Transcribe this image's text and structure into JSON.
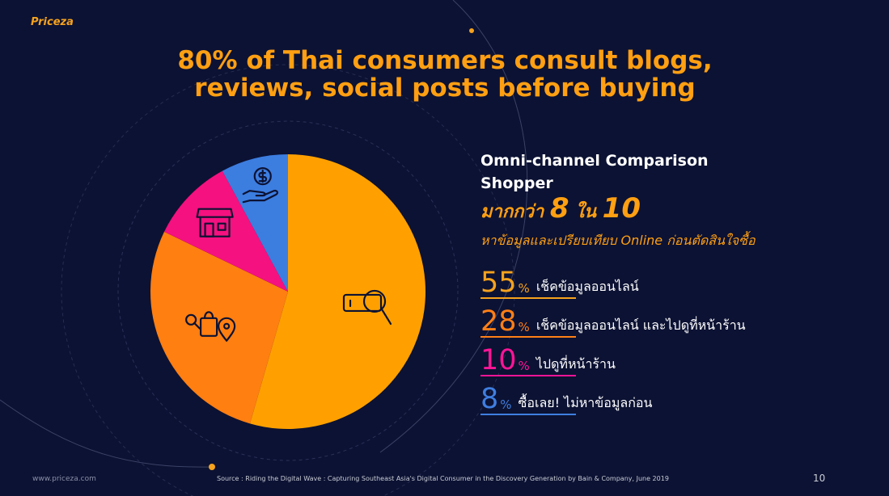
{
  "brand": "Priceza",
  "headline_line1": "80% of Thai consumers consult blogs,",
  "headline_line2": "reviews, social posts before buying",
  "subhead_line1": "Omni-channel Comparison",
  "subhead_line2": "Shopper",
  "big_prefix": "มากกว่า",
  "big_num1": "8",
  "big_mid": "ใน",
  "big_num2": "10",
  "tagline": "หาข้อมูลและเปรียบเทียบ Online ก่อนตัดสินใจซื้อ",
  "stats": [
    {
      "pct": "55",
      "unit": "%",
      "desc": "เช็คข้อมูลออนไลน์",
      "color": "#f6a21d"
    },
    {
      "pct": "28",
      "unit": "%",
      "desc": "เช็คข้อมูลออนไลน์ และไปดูที่หน้าร้าน",
      "color": "#ff7f16"
    },
    {
      "pct": "10",
      "unit": "%",
      "desc": "ไปดูที่หน้าร้าน",
      "color": "#ff1497"
    },
    {
      "pct": "8",
      "unit": "%",
      "desc": "ซื้อเลย! ไม่หาข้อมูลก่อน",
      "color": "#3f7ee0"
    }
  ],
  "footer_site": "www.priceza.com",
  "footer_source": "Source : Riding the Digital Wave : Capturing Southeast Asia's Digital Consumer in the Discovery Generation by Bain & Company, June 2019",
  "page_number": "10",
  "chart_data": {
    "type": "pie",
    "values": [
      55,
      28,
      10,
      8
    ],
    "colors": [
      "#ffa000",
      "#ff7f11",
      "#f5117f",
      "#3c7de0"
    ],
    "icons": [
      "search-icon",
      "shopping-location-icon",
      "store-icon",
      "money-hand-icon"
    ]
  }
}
